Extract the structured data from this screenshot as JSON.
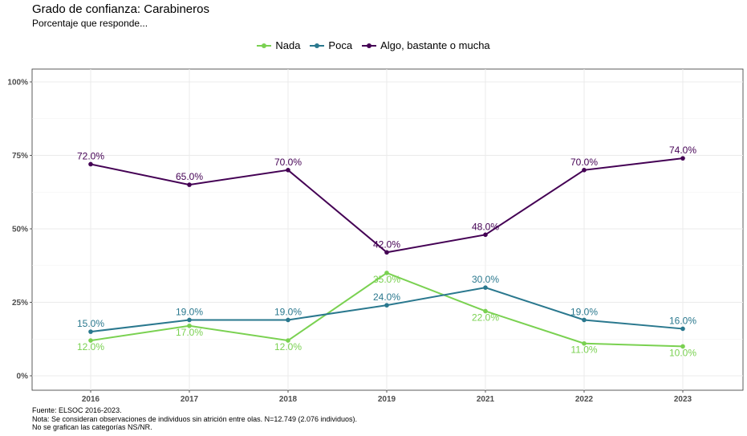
{
  "title": "Grado de confianza: Carabineros",
  "subtitle": "Porcentaje que responde...",
  "footnotes": [
    "Fuente: ELSOC 2016-2023.",
    "Nota: Se consideran observaciones de individuos sin atrición entre olas. N=12.749 (2.076 individuos).",
    "No se grafican las categorías NS/NR."
  ],
  "chart_data": {
    "type": "line",
    "title": "Grado de confianza: Carabineros",
    "subtitle": "Porcentaje que responde...",
    "xlabel": "",
    "ylabel": "",
    "categories": [
      "2016",
      "2017",
      "2018",
      "2019",
      "2021",
      "2022",
      "2023"
    ],
    "y_ticks": [
      "0%",
      "25%",
      "50%",
      "75%",
      "100%"
    ],
    "ylim": [
      0,
      100
    ],
    "grid": true,
    "legend_position": "top",
    "series": [
      {
        "name": "Nada",
        "color": "#7AD151",
        "values": [
          12,
          17,
          12,
          35,
          22,
          11,
          10
        ],
        "labels": [
          "12.0%",
          "17.0%",
          "12.0%",
          "35.0%",
          "22.0%",
          "11.0%",
          "10.0%"
        ]
      },
      {
        "name": "Poca",
        "color": "#2A788E",
        "values": [
          15,
          19,
          19,
          24,
          30,
          19,
          16
        ],
        "labels": [
          "15.0%",
          "19.0%",
          "19.0%",
          "24.0%",
          "30.0%",
          "19.0%",
          "16.0%"
        ]
      },
      {
        "name": "Algo, bastante o mucha",
        "color": "#440154",
        "values": [
          72,
          65,
          70,
          42,
          48,
          70,
          74
        ],
        "labels": [
          "72.0%",
          "65.0%",
          "70.0%",
          "42.0%",
          "48.0%",
          "70.0%",
          "74.0%"
        ]
      }
    ]
  }
}
